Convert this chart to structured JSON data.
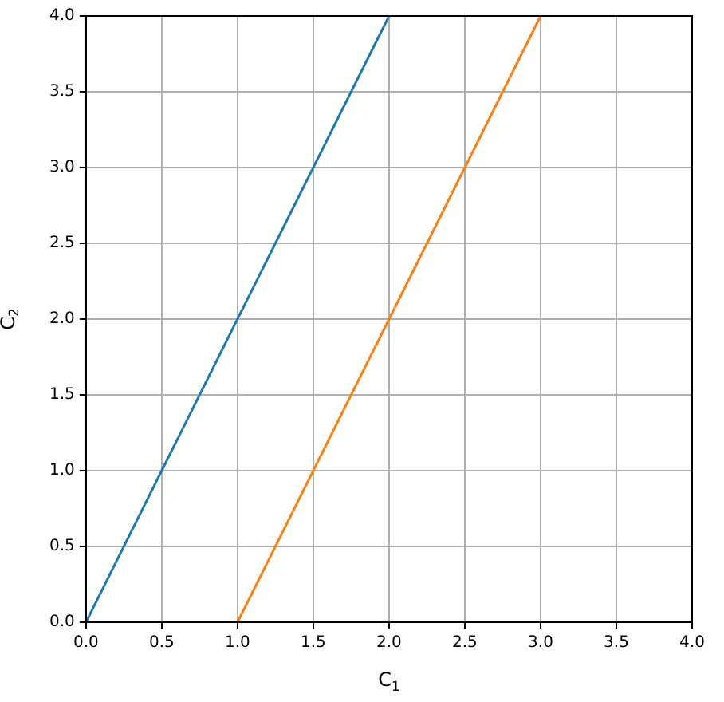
{
  "chart_data": {
    "type": "line",
    "xlabel": "C$_{1}$",
    "ylabel": "C$_{2}$",
    "xlim": [
      0,
      4
    ],
    "ylim": [
      0,
      4
    ],
    "xticks": [
      {
        "value": 0,
        "label": "0.0"
      },
      {
        "value": 0.5,
        "label": "0.5"
      },
      {
        "value": 1,
        "label": "1.0"
      },
      {
        "value": 1.5,
        "label": "1.5"
      },
      {
        "value": 2,
        "label": "2.0"
      },
      {
        "value": 2.5,
        "label": "2.5"
      },
      {
        "value": 3,
        "label": "3.0"
      },
      {
        "value": 3.5,
        "label": "3.5"
      },
      {
        "value": 4,
        "label": "4.0"
      }
    ],
    "yticks": [
      {
        "value": 0,
        "label": "0.0"
      },
      {
        "value": 0.5,
        "label": "0.5"
      },
      {
        "value": 1,
        "label": "1.0"
      },
      {
        "value": 1.5,
        "label": "1.5"
      },
      {
        "value": 2,
        "label": "2.0"
      },
      {
        "value": 2.5,
        "label": "2.5"
      },
      {
        "value": 3,
        "label": "3.0"
      },
      {
        "value": 3.5,
        "label": "3.5"
      },
      {
        "value": 4,
        "label": "4.0"
      }
    ],
    "grid": true,
    "series": [
      {
        "color": "#1f77b4",
        "x": [
          0,
          2
        ],
        "values": [
          0,
          4
        ]
      },
      {
        "color": "#ff7f0e",
        "x": [
          1,
          3
        ],
        "values": [
          0,
          4
        ]
      }
    ]
  }
}
